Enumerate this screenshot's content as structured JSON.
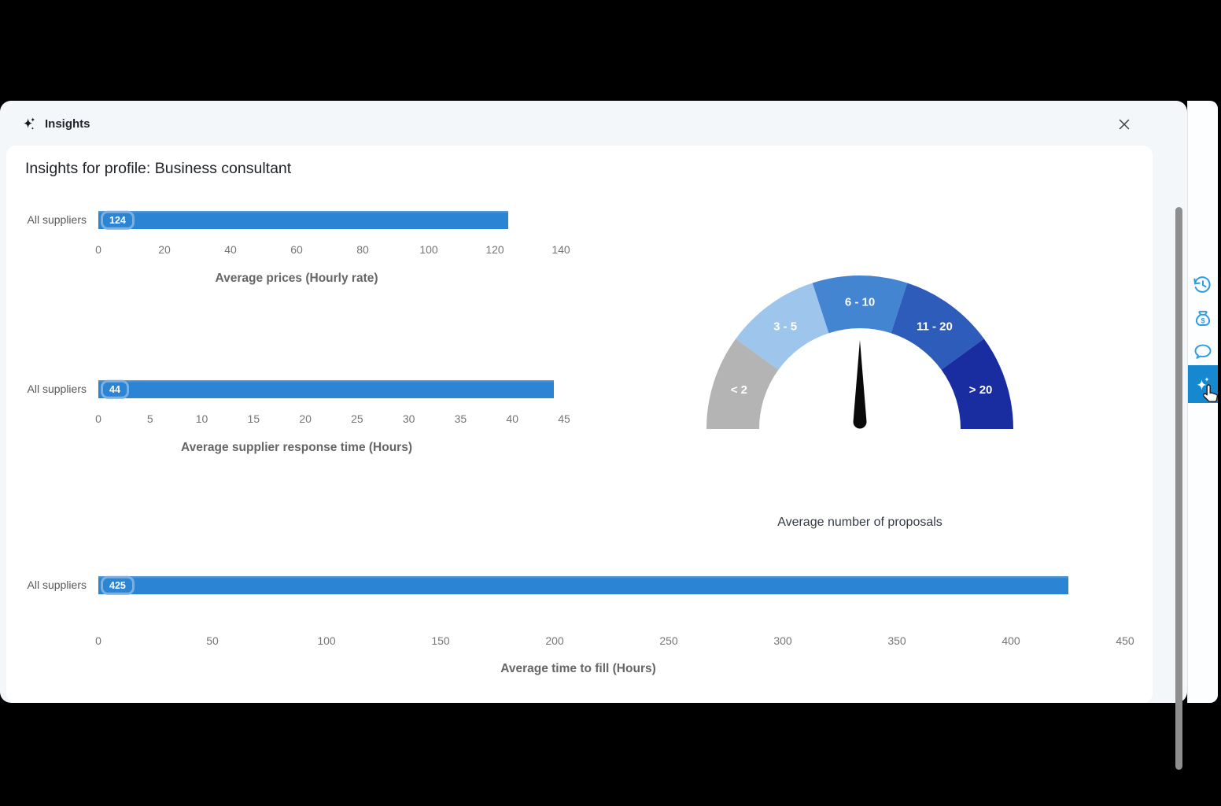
{
  "window": {
    "title": "Insights"
  },
  "page_title": "Insights for profile: Business consultant",
  "colors": {
    "bar": "#2b85d4",
    "bar_badge_border": "#7cb0e1",
    "panel_bg": "#f3f7fa",
    "rail_icon": "#2f9ce0",
    "active_tile": "#1588cf",
    "scrollbar_thumb": "#8e8e8e"
  },
  "chart_data": [
    {
      "type": "bar",
      "orientation": "horizontal",
      "title": "Average prices (Hourly rate)",
      "categories": [
        "All suppliers"
      ],
      "values": [
        124
      ],
      "xlim": [
        0,
        140
      ],
      "ticks": [
        0,
        20,
        40,
        60,
        80,
        100,
        120,
        140
      ],
      "bar_color": "#2b85d4"
    },
    {
      "type": "bar",
      "orientation": "horizontal",
      "title": "Average supplier response time (Hours)",
      "categories": [
        "All suppliers"
      ],
      "values": [
        44
      ],
      "xlim": [
        0,
        45
      ],
      "ticks": [
        0,
        5,
        10,
        15,
        20,
        25,
        30,
        35,
        40,
        45
      ],
      "bar_color": "#2b85d4"
    },
    {
      "type": "bar",
      "orientation": "horizontal",
      "title": "Average time to fill (Hours)",
      "categories": [
        "All suppliers"
      ],
      "values": [
        425
      ],
      "xlim": [
        0,
        450
      ],
      "ticks": [
        0,
        50,
        100,
        150,
        200,
        250,
        300,
        350,
        400,
        450
      ],
      "bar_color": "#2b85d4"
    },
    {
      "type": "gauge",
      "title": "Average number of proposals",
      "segments": [
        {
          "label": "< 2",
          "color": "#b4b4b4"
        },
        {
          "label": "3 - 5",
          "color": "#9ec5ec"
        },
        {
          "label": "6 - 10",
          "color": "#4485d2"
        },
        {
          "label": "11 - 20",
          "color": "#2d5cbb"
        },
        {
          "label": "> 20",
          "color": "#1a2da0"
        }
      ],
      "needle_angle_deg": 90,
      "needle_color": "#0a0a0a"
    }
  ],
  "sidebar": {
    "currency_symbol": "$",
    "items": [
      {
        "name": "history",
        "active": false
      },
      {
        "name": "earnings",
        "active": false
      },
      {
        "name": "chat",
        "active": false
      },
      {
        "name": "insights",
        "active": true
      }
    ]
  }
}
